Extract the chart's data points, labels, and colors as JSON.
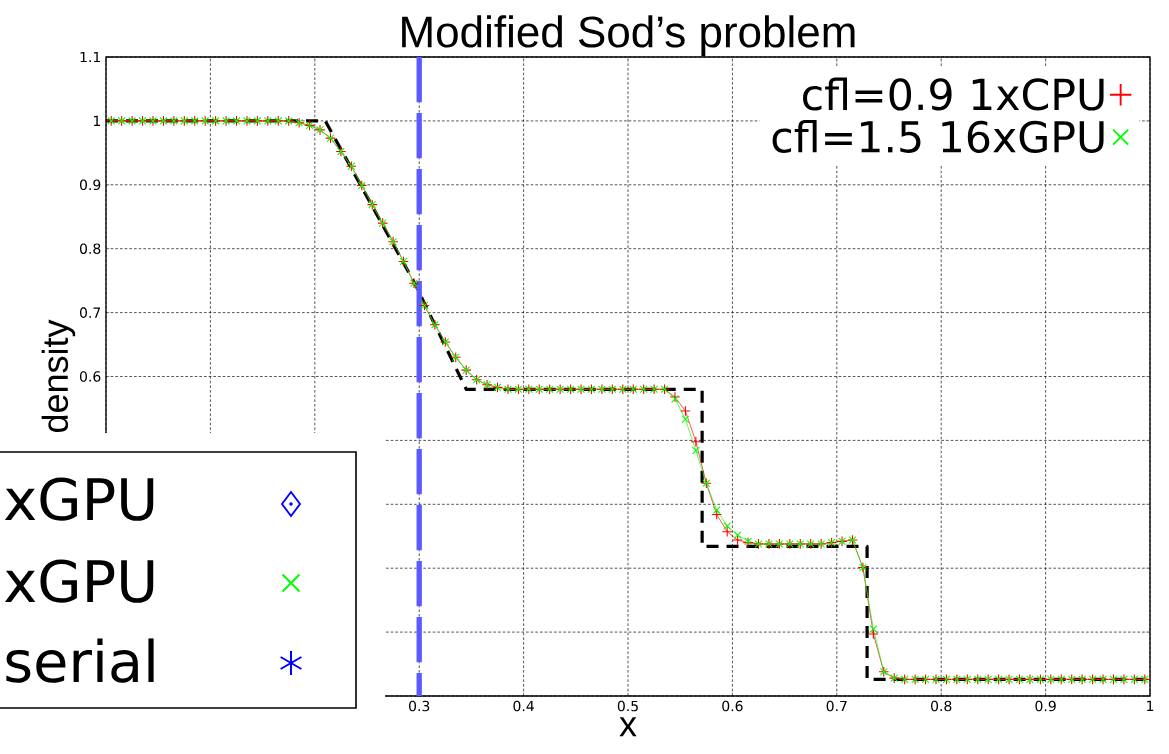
{
  "chart_data": [
    {
      "type": "line",
      "title": "Modified Sod’s problem",
      "xlabel": "x",
      "ylabel": "density",
      "xlim": [
        0,
        1
      ],
      "ylim": [
        0.1,
        1.1
      ],
      "xticks": [
        {
          "value": 0,
          "label": null
        },
        {
          "value": 0.1,
          "label": null
        },
        {
          "value": 0.2,
          "label": null
        },
        0.3,
        0.4,
        0.5,
        0.6,
        0.7,
        0.8,
        0.9,
        1
      ],
      "yticks": [
        {
          "value": 0.1,
          "label": null
        },
        {
          "value": 0.2,
          "label": null
        },
        {
          "value": 0.3,
          "label": null
        },
        {
          "value": 0.4,
          "label": null
        },
        {
          "value": 0.5,
          "label": null
        },
        0.6,
        0.7,
        0.8,
        0.9,
        1,
        1.1
      ],
      "grid": true,
      "legend": "top right",
      "x": [
        0.005,
        0.015,
        0.025,
        0.035,
        0.045,
        0.055,
        0.065,
        0.075,
        0.085,
        0.095,
        0.105,
        0.115,
        0.125,
        0.135,
        0.145,
        0.155,
        0.165,
        0.175,
        0.185,
        0.195,
        0.205,
        0.215,
        0.225,
        0.235,
        0.245,
        0.255,
        0.265,
        0.275,
        0.285,
        0.295,
        0.305,
        0.315,
        0.325,
        0.335,
        0.345,
        0.355,
        0.365,
        0.375,
        0.385,
        0.395,
        0.405,
        0.415,
        0.425,
        0.435,
        0.445,
        0.455,
        0.465,
        0.475,
        0.485,
        0.495,
        0.505,
        0.515,
        0.525,
        0.535,
        0.545,
        0.555,
        0.565,
        0.575,
        0.585,
        0.595,
        0.605,
        0.615,
        0.625,
        0.635,
        0.645,
        0.655,
        0.665,
        0.675,
        0.685,
        0.695,
        0.705,
        0.715,
        0.725,
        0.735,
        0.745,
        0.755,
        0.765,
        0.775,
        0.785,
        0.795,
        0.805,
        0.815,
        0.825,
        0.835,
        0.845,
        0.855,
        0.865,
        0.875,
        0.885,
        0.895,
        0.905,
        0.915,
        0.925,
        0.935,
        0.945,
        0.955,
        0.965,
        0.975,
        0.985,
        0.995
      ],
      "series": [
        {
          "type": "line",
          "color": "#000000",
          "line_style": "dashed",
          "marker": "none",
          "x": [
            0,
            0.21,
            0.296,
            0.345,
            0.571,
            0.571,
            0.729,
            0.729,
            1
          ],
          "values": [
            1,
            1,
            0.745,
            0.58,
            0.58,
            0.334,
            0.334,
            0.126,
            0.126
          ]
        },
        {
          "type": "line",
          "name": "cfl=0.9 1xCPU",
          "color": "#ff0000",
          "line_style": "solid",
          "marker": "plus",
          "values": [
            1,
            1,
            1,
            1,
            1,
            1,
            1,
            1,
            1,
            1,
            1,
            1,
            1,
            1,
            1,
            1,
            1,
            1,
            0.997,
            0.993,
            0.986,
            0.973,
            0.952,
            0.929,
            0.899,
            0.869,
            0.84,
            0.811,
            0.78,
            0.746,
            0.711,
            0.681,
            0.654,
            0.63,
            0.61,
            0.595,
            0.587,
            0.583,
            0.58,
            0.58,
            0.58,
            0.58,
            0.58,
            0.58,
            0.58,
            0.58,
            0.58,
            0.58,
            0.58,
            0.58,
            0.58,
            0.58,
            0.58,
            0.58,
            0.568,
            0.546,
            0.498,
            0.433,
            0.384,
            0.357,
            0.344,
            0.34,
            0.338,
            0.338,
            0.338,
            0.338,
            0.338,
            0.338,
            0.338,
            0.34,
            0.342,
            0.344,
            0.301,
            0.197,
            0.138,
            0.128,
            0.126,
            0.126,
            0.126,
            0.126,
            0.126,
            0.126,
            0.126,
            0.126,
            0.126,
            0.126,
            0.126,
            0.126,
            0.126,
            0.126,
            0.126,
            0.126,
            0.126,
            0.126,
            0.126,
            0.126,
            0.126,
            0.126,
            0.126,
            0.126
          ]
        },
        {
          "type": "line",
          "name": "cfl=1.5 16xGPU",
          "color": "#00ff00",
          "line_style": "solid",
          "marker": "cross",
          "values": [
            1,
            1,
            1,
            1,
            1,
            1,
            1,
            1,
            1,
            1,
            1,
            1,
            1,
            1,
            1,
            1,
            1,
            1,
            0.997,
            0.993,
            0.986,
            0.973,
            0.952,
            0.929,
            0.899,
            0.869,
            0.84,
            0.811,
            0.78,
            0.746,
            0.711,
            0.681,
            0.654,
            0.63,
            0.61,
            0.595,
            0.587,
            0.583,
            0.58,
            0.58,
            0.58,
            0.58,
            0.58,
            0.58,
            0.58,
            0.58,
            0.58,
            0.58,
            0.58,
            0.58,
            0.58,
            0.58,
            0.58,
            0.58,
            0.565,
            0.533,
            0.484,
            0.433,
            0.391,
            0.366,
            0.352,
            0.342,
            0.338,
            0.338,
            0.338,
            0.338,
            0.338,
            0.338,
            0.338,
            0.34,
            0.342,
            0.344,
            0.301,
            0.205,
            0.138,
            0.128,
            0.126,
            0.126,
            0.126,
            0.126,
            0.126,
            0.126,
            0.126,
            0.126,
            0.126,
            0.126,
            0.126,
            0.126,
            0.126,
            0.126,
            0.126,
            0.126,
            0.126,
            0.126,
            0.126,
            0.126,
            0.126,
            0.126,
            0.126,
            0.126
          ]
        }
      ],
      "ref_lines": [
        {
          "axis": "x",
          "value": 0.3,
          "color": "#5a5aff",
          "line_style": "dashed"
        }
      ]
    },
    {
      "type": "other",
      "annotations": [
        "xGPU",
        "xGPU",
        "serial"
      ]
    }
  ]
}
